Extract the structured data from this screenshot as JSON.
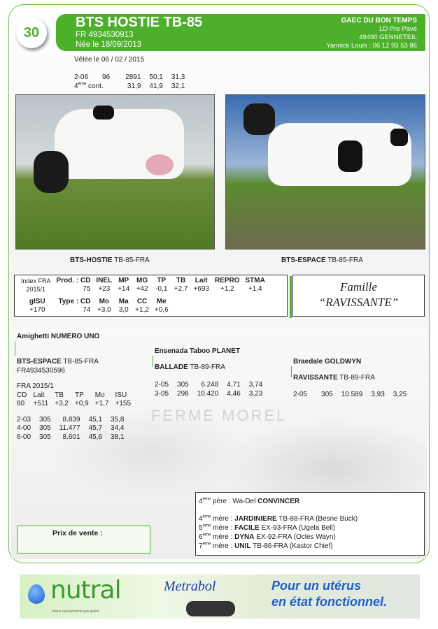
{
  "lot_number": "30",
  "animal": {
    "name": "BTS HOSTIE TB-85",
    "id": "FR 4934530913",
    "born": "Née le 18/09/2013",
    "calved": "Vêlée le 06 / 02 / 2015",
    "lactation_row1": [
      "2-06",
      "96",
      "2891",
      "50,1",
      "31,3"
    ],
    "lactation_row2": {
      "label_sup": "ème",
      "label_num": "4",
      "label_rest": " cont.",
      "values": [
        "31,9",
        "41,9",
        "32,1"
      ]
    }
  },
  "owner": {
    "name": "GAEC DU BON TEMPS",
    "address": "LD Pre Pavé",
    "city": "49490 GENNETEIL",
    "contact": "Yannick Louis : 06 12 93 53 86"
  },
  "photos": {
    "left": {
      "bold": "BTS-HOSTIE",
      "rest": " TB-85-FRA"
    },
    "right": {
      "bold": "BTS-ESPACE",
      "rest": " TB-85-FRA"
    }
  },
  "index": {
    "label1": "Index FRA",
    "label2": "2015/1",
    "prod_label": "Prod. : CD",
    "prod_headers": [
      "INEL",
      "MP",
      "MG",
      "TP",
      "TB",
      "Lait",
      "REPRO",
      "STMA"
    ],
    "prod_cd": "75",
    "prod_values": [
      "+23",
      "+14",
      "+42",
      "-0,1",
      "+2,7",
      "+693",
      "+1,2",
      "+1,4"
    ],
    "gisu_label": "gISU",
    "gisu_value": "+170",
    "type_label": "Type : CD",
    "type_headers": [
      "Mo",
      "Ma",
      "CC",
      "Me"
    ],
    "type_cd": "74",
    "type_values": [
      "+3,0",
      "3,0",
      "+1,2",
      "+0,6"
    ]
  },
  "family": {
    "line1": "Famille",
    "line2": "“RAVISSANTE”"
  },
  "pedigree": {
    "sire_sire": "Amighetti NUMERO UNO",
    "sire": {
      "bold": "BTS-ESPACE",
      "rest": " TB-85-FRA",
      "id": "FR4934530596",
      "index_label": "FRA 2015/1",
      "headers": [
        "CD",
        "Lait",
        "TB",
        "TP",
        "Mo",
        "ISU"
      ],
      "values": [
        "80",
        "+511",
        "+3,2",
        "+0,9",
        "+1,7",
        "+155"
      ],
      "lactations": [
        [
          "2-03",
          "305",
          "8.839",
          "45,1",
          "35,8"
        ],
        [
          "4-00",
          "305",
          "11.477",
          "45,7",
          "34,4"
        ],
        [
          "6-00",
          "305",
          "8.601",
          "45,6",
          "38,1"
        ]
      ]
    },
    "dam_sire": "Ensenada Taboo PLANET",
    "dam": {
      "bold": "BALLADE",
      "rest": " TB-89-FRA",
      "lactations": [
        [
          "2-05",
          "305",
          "6.248",
          "4,71",
          "3,74"
        ],
        [
          "3-05",
          "298",
          "10.420",
          "4,46",
          "3,23"
        ]
      ]
    },
    "granddam_sire": "Braedale GOLDWYN",
    "granddam": {
      "bold": "RAVISSANTE",
      "rest": " TB-89-FRA",
      "lactations": [
        [
          "2-05",
          "305",
          "10.589",
          "3,93",
          "3,25"
        ]
      ]
    },
    "watermark": "FERME MOREL"
  },
  "ancestors": [
    {
      "n": "4",
      "sup": "ème",
      "role": " père : ",
      "pre": "Wa-Del ",
      "bold": "CONVINCER",
      "rest": ""
    },
    {
      "n": "4",
      "sup": "ème",
      "role": " mère : ",
      "pre": "",
      "bold": "JARDINIERE",
      "rest": " TB-88-FRA (Besne Buck)"
    },
    {
      "n": "5",
      "sup": "ème",
      "role": " mère : ",
      "pre": "",
      "bold": "FACILE",
      "rest": " EX-93-FRA (Ugela Bell)"
    },
    {
      "n": "6",
      "sup": "ème",
      "role": " mère : ",
      "pre": "",
      "bold": "DYNA",
      "rest": " EX-92-FRA (Ocles Wayn)"
    },
    {
      "n": "7",
      "sup": "ème",
      "role": " mère : ",
      "pre": "",
      "bold": "UNIL",
      "rest": " TB-86-FRA (Kastor Chief)"
    }
  ],
  "price": {
    "label": "Prix de vente :"
  },
  "ad": {
    "brand": "Nutral",
    "tagline": "mieux vaut prévenir que guérir",
    "product": "Metrabol",
    "slogan1": "Pour un utérus",
    "slogan2": "en état fonctionnel."
  },
  "colors": {
    "accent": "#4cb02a",
    "ad_blue": "#1f5fc8"
  }
}
